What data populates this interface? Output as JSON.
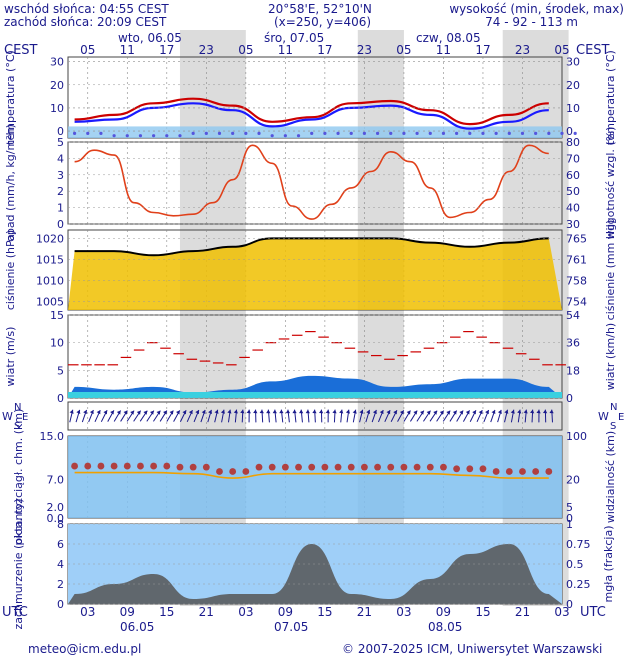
{
  "header": {
    "sunrise": "wschód słońca: 04:55 CEST",
    "sunset": "zachód słońca: 20:09 CEST",
    "coords": "20°58'E, 52°10'N",
    "grid": "(x=250,  y=406)",
    "height_label": "wysokość (min, środek, max)",
    "height_values": "74 - 92 - 113 m"
  },
  "top_axis": {
    "tz": "CEST",
    "hour_labels": [
      "05",
      "11",
      "17",
      "23",
      "05",
      "11",
      "17",
      "23",
      "05",
      "11",
      "17",
      "23",
      "05"
    ],
    "days": [
      "wto, 06.05",
      "śro, 07.05",
      "czw, 08.05"
    ]
  },
  "bottom_axis": {
    "tz": "UTC",
    "hour_labels": [
      "03",
      "09",
      "15",
      "21",
      "03",
      "09",
      "15",
      "21",
      "03",
      "09",
      "15",
      "21",
      "03"
    ],
    "dates": [
      "06.05",
      "07.05",
      "08.05"
    ]
  },
  "footer": {
    "email": "meteo@icm.edu.pl",
    "copyright": "© 2007-2025 ICM, Uniwersytet Warszawski"
  },
  "colors": {
    "text": "#1a1a8c",
    "night": "#dcdcdc",
    "temp_max": "#cc0000",
    "temp_min": "#1a1aff",
    "rain_hum": "#e0401a",
    "pressure_line": "#000000",
    "pressure_fill": "#f0c000",
    "wind_fill": "#1a6ed8",
    "wind_gust": "#cc0000",
    "vis_bg": "#7fbff0",
    "cloud_bg": "#9fcff8",
    "cloud_dark": "#555555"
  },
  "chart_data": [
    {
      "type": "line",
      "name": "temperature",
      "ylabel": "temperatura (°C)",
      "ylim": [
        -3,
        32
      ],
      "yticks": [
        0,
        10,
        20,
        30
      ],
      "x_hours": [
        0,
        6,
        12,
        18,
        24,
        30,
        36,
        42,
        48,
        54,
        60,
        66,
        72
      ],
      "series": [
        {
          "values": [
            5,
            7,
            12,
            14,
            11,
            4,
            6,
            12,
            13,
            9,
            3,
            7,
            12
          ]
        },
        {
          "values": [
            4,
            5,
            10,
            12,
            9,
            2,
            5,
            10,
            11,
            7,
            1,
            4,
            9
          ]
        },
        {
          "values": [
            -1,
            -2,
            -2,
            -1,
            -1,
            -2,
            -1,
            -1,
            -1,
            -1,
            -1,
            -1,
            -1
          ]
        }
      ]
    },
    {
      "type": "line",
      "name": "precipitation-humidity",
      "ylabel": "opad (mm/h, kg/m²h)",
      "ylabel_right": "wilgotność wzgl. (%)",
      "ylim": [
        0,
        5
      ],
      "ylim_right": [
        30,
        80
      ],
      "yticks": [
        0,
        1,
        2,
        3,
        4,
        5
      ],
      "yticks_right": [
        30,
        40,
        50,
        60,
        70,
        80
      ],
      "x_hours": [
        0,
        3,
        6,
        9,
        12,
        15,
        18,
        21,
        24,
        27,
        30,
        33,
        36,
        39,
        42,
        45,
        48,
        51,
        54,
        57,
        60,
        63,
        66,
        69,
        72
      ],
      "humidity": [
        68,
        75,
        72,
        43,
        37,
        35,
        36,
        43,
        57,
        78,
        67,
        41,
        33,
        42,
        52,
        62,
        74,
        68,
        52,
        34,
        37,
        45,
        62,
        78,
        73
      ]
    },
    {
      "type": "area",
      "name": "pressure",
      "ylabel": "ciśnienie (hPa)",
      "ylabel_right": "ciśnienie (mm Hg)",
      "ylim": [
        1003,
        1022
      ],
      "yticks": [
        1005,
        1010,
        1015,
        1020
      ],
      "yticks_right_labels": [
        "754",
        "758",
        "761",
        "765"
      ],
      "x_hours": [
        0,
        6,
        12,
        18,
        24,
        30,
        36,
        42,
        48,
        54,
        60,
        66,
        72
      ],
      "values": [
        1017,
        1017,
        1016,
        1017,
        1018,
        1020,
        1020,
        1020,
        1020,
        1019,
        1018,
        1019,
        1020
      ]
    },
    {
      "type": "area",
      "name": "wind",
      "ylabel": "wiatr (m/s)",
      "ylabel_right": "wiatr (km/h)",
      "ylim": [
        0,
        15
      ],
      "yticks": [
        0,
        5,
        10,
        15
      ],
      "yticks_right_labels": [
        "0",
        "18",
        "36",
        "54"
      ],
      "x_hours": [
        0,
        6,
        12,
        18,
        24,
        30,
        36,
        42,
        48,
        54,
        60,
        66,
        72
      ],
      "speed": [
        2,
        1.5,
        2,
        1,
        1.5,
        3,
        4,
        3.5,
        2,
        2.5,
        3.5,
        3.5,
        2
      ],
      "gust": [
        6,
        6,
        10,
        7,
        6,
        10,
        12,
        9,
        7,
        9,
        12,
        9,
        6
      ]
    },
    {
      "type": "line",
      "name": "visibility",
      "ylabel": "pion. rozciągł. chm. (km)",
      "ylabel_right": "widzialność (km)",
      "yticks_labels": [
        "0.0",
        "2.0",
        "7.0",
        "15.0"
      ],
      "yticks_right_labels": [
        "0",
        "5",
        "20",
        "100"
      ],
      "x_hours": [
        0,
        6,
        12,
        18,
        24,
        30,
        36,
        42,
        48,
        54,
        60,
        66,
        72
      ],
      "values": [
        9.5,
        9.5,
        9.5,
        9.3,
        8.5,
        9.3,
        9.3,
        9.3,
        9.3,
        9.3,
        9,
        8.5,
        8.5
      ]
    },
    {
      "type": "area",
      "name": "cloudiness",
      "ylabel": "zachmurzenie (oktanty)",
      "ylabel_right": "mgła (frakcja)",
      "ylim": [
        0,
        8
      ],
      "yticks": [
        0,
        2,
        4,
        6,
        8
      ],
      "yticks_right_labels": [
        "0",
        "0.25",
        "0.5",
        "0.75",
        "1"
      ],
      "x_hours": [
        0,
        6,
        12,
        18,
        24,
        30,
        36,
        42,
        48,
        54,
        60,
        66,
        72
      ],
      "values": [
        1,
        2,
        3,
        0.5,
        1,
        1,
        6,
        1,
        0.5,
        2.5,
        5,
        6,
        1
      ]
    }
  ]
}
